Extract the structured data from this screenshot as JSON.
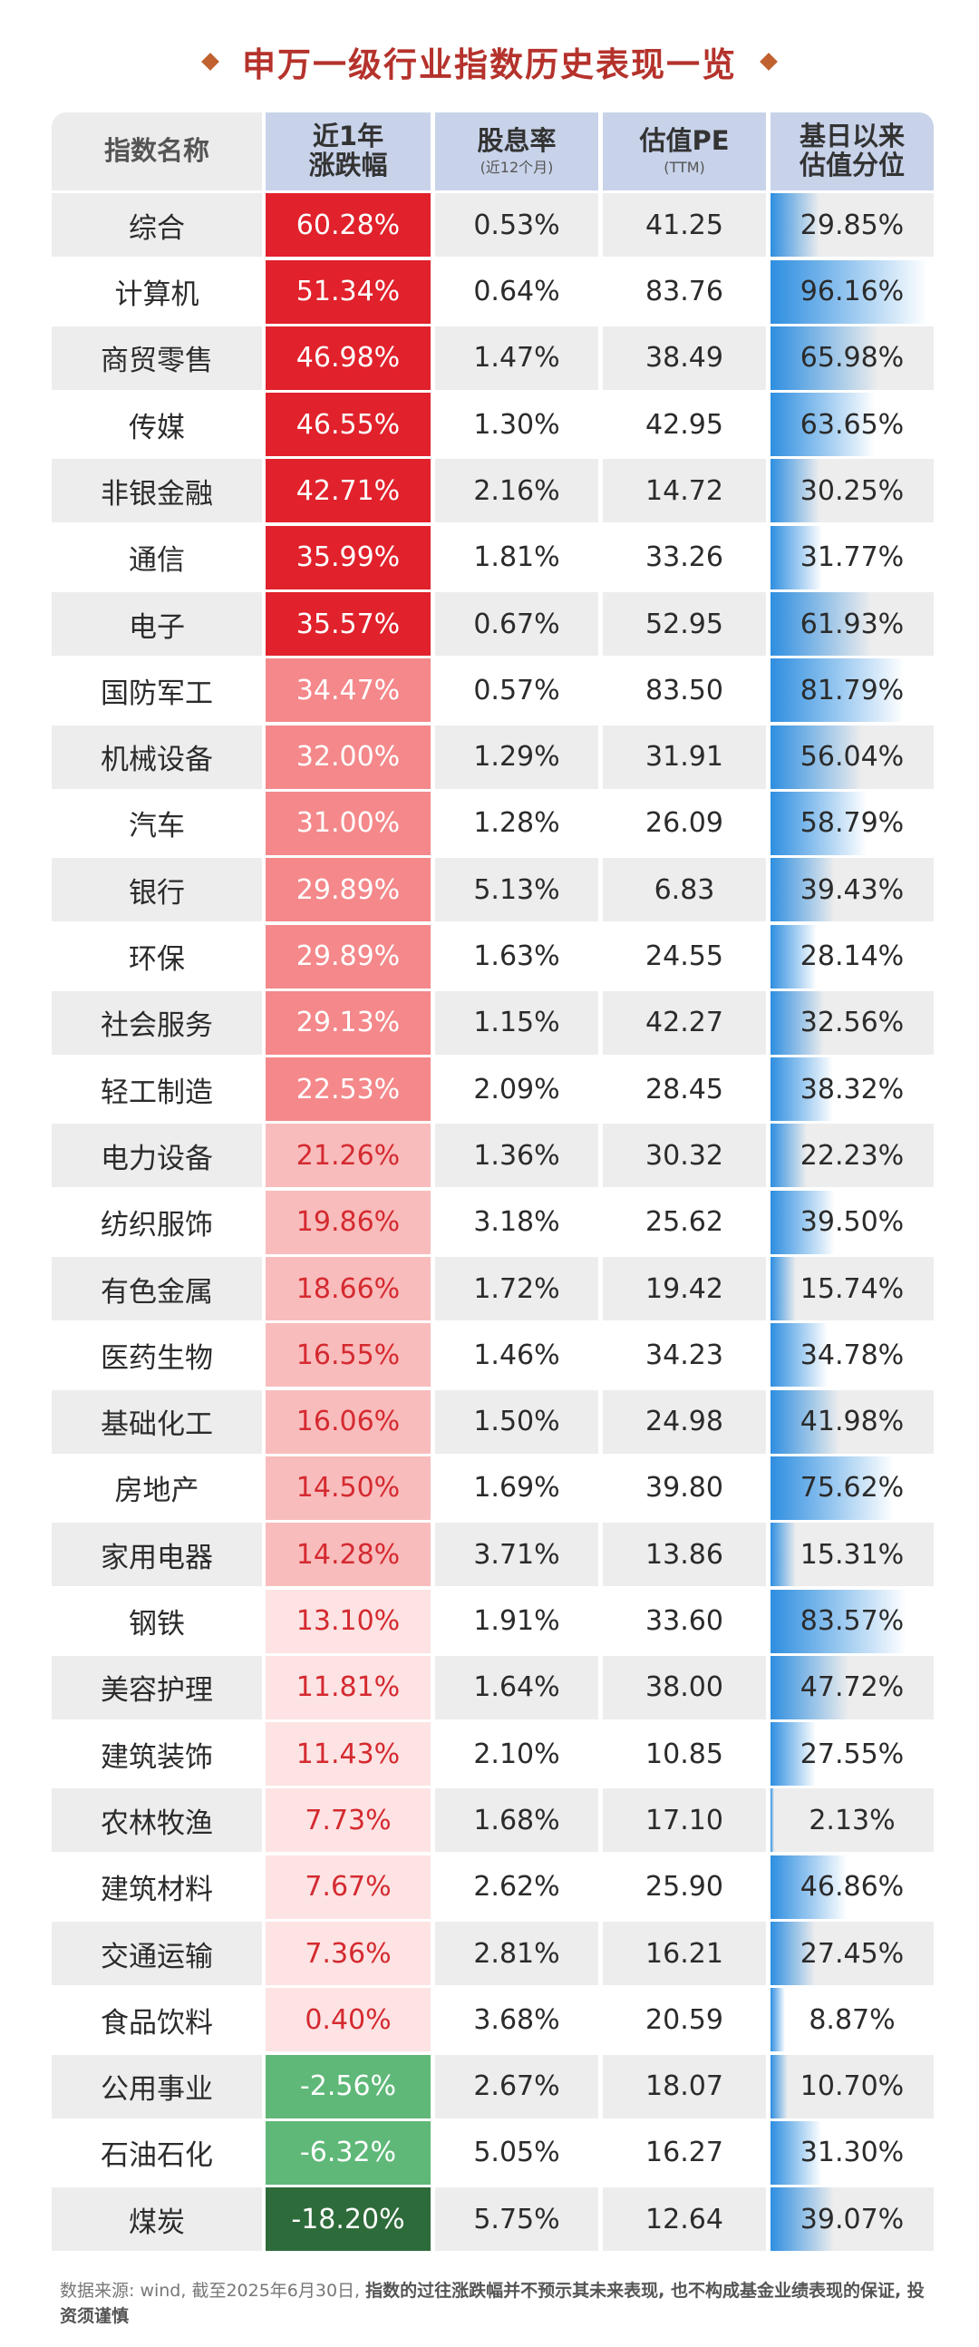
{
  "title": "申万一级行业指数历史表现一览",
  "header": {
    "col_name": "指数名称",
    "col_change_l1": "近1年",
    "col_change_l2": "涨跌幅",
    "col_yield": "股息率",
    "col_yield_sub": "(近12个月)",
    "col_pe": "估值PE",
    "col_pe_sub": "(TTM)",
    "col_pct_l1": "基日以来",
    "col_pct_l2": "估值分位"
  },
  "colors": {
    "title": "#b5322c",
    "up_strong": "#e1212b",
    "up_mid": "#f4888a",
    "up_light": "#f9bcbc",
    "up_faint": "#fde3e3",
    "down_mid": "#5fb878",
    "down_strong": "#2e6b3a",
    "percentile_bar": "#2e8ee0"
  },
  "chart_data": {
    "type": "table",
    "title": "申万一级行业指数历史表现一览",
    "columns": [
      "指数名称",
      "近1年涨跌幅",
      "股息率(近12个月)",
      "估值PE(TTM)",
      "基日以来估值分位"
    ],
    "rows": [
      {
        "name": "综合",
        "change": "60.28%",
        "change_value": 60.28,
        "yield": "0.53%",
        "pe": "41.25",
        "pct": "29.85%",
        "pct_value": 29.85
      },
      {
        "name": "计算机",
        "change": "51.34%",
        "change_value": 51.34,
        "yield": "0.64%",
        "pe": "83.76",
        "pct": "96.16%",
        "pct_value": 96.16
      },
      {
        "name": "商贸零售",
        "change": "46.98%",
        "change_value": 46.98,
        "yield": "1.47%",
        "pe": "38.49",
        "pct": "65.98%",
        "pct_value": 65.98
      },
      {
        "name": "传媒",
        "change": "46.55%",
        "change_value": 46.55,
        "yield": "1.30%",
        "pe": "42.95",
        "pct": "63.65%",
        "pct_value": 63.65
      },
      {
        "name": "非银金融",
        "change": "42.71%",
        "change_value": 42.71,
        "yield": "2.16%",
        "pe": "14.72",
        "pct": "30.25%",
        "pct_value": 30.25
      },
      {
        "name": "通信",
        "change": "35.99%",
        "change_value": 35.99,
        "yield": "1.81%",
        "pe": "33.26",
        "pct": "31.77%",
        "pct_value": 31.77
      },
      {
        "name": "电子",
        "change": "35.57%",
        "change_value": 35.57,
        "yield": "0.67%",
        "pe": "52.95",
        "pct": "61.93%",
        "pct_value": 61.93
      },
      {
        "name": "国防军工",
        "change": "34.47%",
        "change_value": 34.47,
        "yield": "0.57%",
        "pe": "83.50",
        "pct": "81.79%",
        "pct_value": 81.79
      },
      {
        "name": "机械设备",
        "change": "32.00%",
        "change_value": 32.0,
        "yield": "1.29%",
        "pe": "31.91",
        "pct": "56.04%",
        "pct_value": 56.04
      },
      {
        "name": "汽车",
        "change": "31.00%",
        "change_value": 31.0,
        "yield": "1.28%",
        "pe": "26.09",
        "pct": "58.79%",
        "pct_value": 58.79
      },
      {
        "name": "银行",
        "change": "29.89%",
        "change_value": 29.89,
        "yield": "5.13%",
        "pe": "6.83",
        "pct": "39.43%",
        "pct_value": 39.43
      },
      {
        "name": "环保",
        "change": "29.89%",
        "change_value": 29.89,
        "yield": "1.63%",
        "pe": "24.55",
        "pct": "28.14%",
        "pct_value": 28.14
      },
      {
        "name": "社会服务",
        "change": "29.13%",
        "change_value": 29.13,
        "yield": "1.15%",
        "pe": "42.27",
        "pct": "32.56%",
        "pct_value": 32.56
      },
      {
        "name": "轻工制造",
        "change": "22.53%",
        "change_value": 22.53,
        "yield": "2.09%",
        "pe": "28.45",
        "pct": "38.32%",
        "pct_value": 38.32
      },
      {
        "name": "电力设备",
        "change": "21.26%",
        "change_value": 21.26,
        "yield": "1.36%",
        "pe": "30.32",
        "pct": "22.23%",
        "pct_value": 22.23
      },
      {
        "name": "纺织服饰",
        "change": "19.86%",
        "change_value": 19.86,
        "yield": "3.18%",
        "pe": "25.62",
        "pct": "39.50%",
        "pct_value": 39.5
      },
      {
        "name": "有色金属",
        "change": "18.66%",
        "change_value": 18.66,
        "yield": "1.72%",
        "pe": "19.42",
        "pct": "15.74%",
        "pct_value": 15.74
      },
      {
        "name": "医药生物",
        "change": "16.55%",
        "change_value": 16.55,
        "yield": "1.46%",
        "pe": "34.23",
        "pct": "34.78%",
        "pct_value": 34.78
      },
      {
        "name": "基础化工",
        "change": "16.06%",
        "change_value": 16.06,
        "yield": "1.50%",
        "pe": "24.98",
        "pct": "41.98%",
        "pct_value": 41.98
      },
      {
        "name": "房地产",
        "change": "14.50%",
        "change_value": 14.5,
        "yield": "1.69%",
        "pe": "39.80",
        "pct": "75.62%",
        "pct_value": 75.62
      },
      {
        "name": "家用电器",
        "change": "14.28%",
        "change_value": 14.28,
        "yield": "3.71%",
        "pe": "13.86",
        "pct": "15.31%",
        "pct_value": 15.31
      },
      {
        "name": "钢铁",
        "change": "13.10%",
        "change_value": 13.1,
        "yield": "1.91%",
        "pe": "33.60",
        "pct": "83.57%",
        "pct_value": 83.57
      },
      {
        "name": "美容护理",
        "change": "11.81%",
        "change_value": 11.81,
        "yield": "1.64%",
        "pe": "38.00",
        "pct": "47.72%",
        "pct_value": 47.72
      },
      {
        "name": "建筑装饰",
        "change": "11.43%",
        "change_value": 11.43,
        "yield": "2.10%",
        "pe": "10.85",
        "pct": "27.55%",
        "pct_value": 27.55
      },
      {
        "name": "农林牧渔",
        "change": "7.73%",
        "change_value": 7.73,
        "yield": "1.68%",
        "pe": "17.10",
        "pct": "2.13%",
        "pct_value": 2.13
      },
      {
        "name": "建筑材料",
        "change": "7.67%",
        "change_value": 7.67,
        "yield": "2.62%",
        "pe": "25.90",
        "pct": "46.86%",
        "pct_value": 46.86
      },
      {
        "name": "交通运输",
        "change": "7.36%",
        "change_value": 7.36,
        "yield": "2.81%",
        "pe": "16.21",
        "pct": "27.45%",
        "pct_value": 27.45
      },
      {
        "name": "食品饮料",
        "change": "0.40%",
        "change_value": 0.4,
        "yield": "3.68%",
        "pe": "20.59",
        "pct": "8.87%",
        "pct_value": 8.87
      },
      {
        "name": "公用事业",
        "change": "-2.56%",
        "change_value": -2.56,
        "yield": "2.67%",
        "pe": "18.07",
        "pct": "10.70%",
        "pct_value": 10.7
      },
      {
        "name": "石油石化",
        "change": "-6.32%",
        "change_value": -6.32,
        "yield": "5.05%",
        "pe": "16.27",
        "pct": "31.30%",
        "pct_value": 31.3
      },
      {
        "name": "煤炭",
        "change": "-18.20%",
        "change_value": -18.2,
        "yield": "5.75%",
        "pe": "12.64",
        "pct": "39.07%",
        "pct_value": 39.07
      }
    ]
  },
  "footer": {
    "source": "数据来源: wind, 截至2025年6月30日, ",
    "disclaimer": "指数的过往涨跌幅并不预示其未来表现, 也不构成基金业绩表现的保证, 投资须谨慎"
  }
}
